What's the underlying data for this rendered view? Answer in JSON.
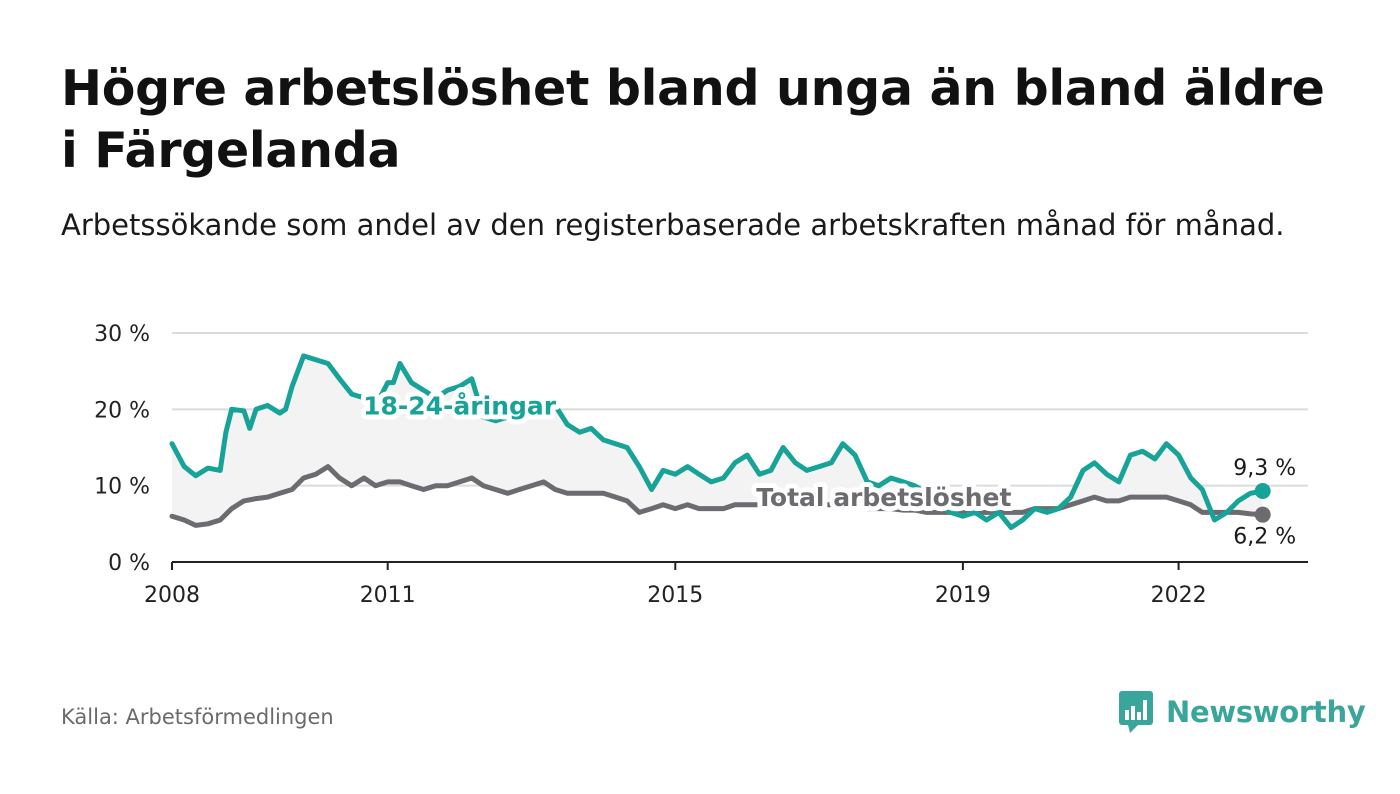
{
  "header": {
    "title": "Högre arbetslöshet bland unga än bland äldre i Färgelanda",
    "subtitle": "Arbetssökande som andel av den registerbaserade arbetskraften månad för månad."
  },
  "footer": {
    "source": "Källa: Arbetsförmedlingen",
    "brand": "Newsworthy",
    "brand_color": "#3aa59b"
  },
  "chart_data": {
    "type": "line",
    "title": "Högre arbetslöshet bland unga än bland äldre i Färgelanda",
    "xlabel": "",
    "ylabel": "",
    "xlim": [
      2008.0,
      2023.8
    ],
    "ylim": [
      0,
      30
    ],
    "grid": true,
    "yticks": [
      0,
      10,
      20,
      30
    ],
    "ytick_labels": [
      "0 %",
      "10 %",
      "20 %",
      "30 %"
    ],
    "xticks": [
      2008,
      2011,
      2015,
      2019,
      2022
    ],
    "xtick_labels": [
      "2008",
      "2011",
      "2015",
      "2019",
      "2022"
    ],
    "series": [
      {
        "name": "18-24-åringar",
        "color": "#17a398",
        "end_label": "9,3 %",
        "points": [
          [
            2008.0,
            15.5
          ],
          [
            2008.17,
            12.5
          ],
          [
            2008.33,
            11.3
          ],
          [
            2008.5,
            12.3
          ],
          [
            2008.67,
            12.0
          ],
          [
            2008.75,
            17.0
          ],
          [
            2008.83,
            20.0
          ],
          [
            2009.0,
            19.8
          ],
          [
            2009.08,
            17.5
          ],
          [
            2009.17,
            20.0
          ],
          [
            2009.33,
            20.5
          ],
          [
            2009.5,
            19.5
          ],
          [
            2009.58,
            20.0
          ],
          [
            2009.67,
            23.0
          ],
          [
            2009.83,
            27.0
          ],
          [
            2010.0,
            26.5
          ],
          [
            2010.17,
            26.0
          ],
          [
            2010.33,
            24.0
          ],
          [
            2010.5,
            22.0
          ],
          [
            2010.67,
            21.5
          ],
          [
            2010.75,
            20.5
          ],
          [
            2010.92,
            22.0
          ],
          [
            2011.0,
            23.5
          ],
          [
            2011.08,
            23.5
          ],
          [
            2011.17,
            26.0
          ],
          [
            2011.33,
            23.5
          ],
          [
            2011.5,
            22.5
          ],
          [
            2011.67,
            21.5
          ],
          [
            2011.83,
            22.5
          ],
          [
            2012.0,
            23.0
          ],
          [
            2012.17,
            24.0
          ],
          [
            2012.33,
            19.0
          ],
          [
            2012.5,
            18.5
          ],
          [
            2012.67,
            19.0
          ],
          [
            2013.0,
            20.0
          ],
          [
            2013.33,
            20.5
          ],
          [
            2013.5,
            18.0
          ],
          [
            2013.67,
            17.0
          ],
          [
            2013.83,
            17.5
          ],
          [
            2014.0,
            16.0
          ],
          [
            2014.33,
            15.0
          ],
          [
            2014.5,
            12.5
          ],
          [
            2014.67,
            9.5
          ],
          [
            2014.83,
            12.0
          ],
          [
            2015.0,
            11.5
          ],
          [
            2015.17,
            12.5
          ],
          [
            2015.33,
            11.5
          ],
          [
            2015.5,
            10.5
          ],
          [
            2015.67,
            11.0
          ],
          [
            2015.83,
            13.0
          ],
          [
            2016.0,
            14.0
          ],
          [
            2016.17,
            11.5
          ],
          [
            2016.33,
            12.0
          ],
          [
            2016.5,
            15.0
          ],
          [
            2016.67,
            13.0
          ],
          [
            2016.83,
            12.0
          ],
          [
            2017.0,
            12.5
          ],
          [
            2017.17,
            13.0
          ],
          [
            2017.33,
            15.5
          ],
          [
            2017.5,
            14.0
          ],
          [
            2017.67,
            10.5
          ],
          [
            2017.83,
            10.0
          ],
          [
            2018.0,
            11.0
          ],
          [
            2018.17,
            10.5
          ],
          [
            2018.33,
            10.0
          ],
          [
            2018.5,
            9.0
          ],
          [
            2018.67,
            7.5
          ],
          [
            2018.83,
            6.5
          ],
          [
            2019.0,
            6.0
          ],
          [
            2019.17,
            6.5
          ],
          [
            2019.33,
            5.5
          ],
          [
            2019.5,
            6.5
          ],
          [
            2019.67,
            4.5
          ],
          [
            2019.83,
            5.5
          ],
          [
            2020.0,
            7.0
          ],
          [
            2020.17,
            6.5
          ],
          [
            2020.33,
            7.0
          ],
          [
            2020.5,
            8.5
          ],
          [
            2020.67,
            12.0
          ],
          [
            2020.83,
            13.0
          ],
          [
            2021.0,
            11.5
          ],
          [
            2021.17,
            10.5
          ],
          [
            2021.33,
            14.0
          ],
          [
            2021.5,
            14.5
          ],
          [
            2021.67,
            13.5
          ],
          [
            2021.83,
            15.5
          ],
          [
            2022.0,
            14.0
          ],
          [
            2022.17,
            11.0
          ],
          [
            2022.33,
            9.5
          ],
          [
            2022.5,
            5.5
          ],
          [
            2022.67,
            6.5
          ],
          [
            2022.83,
            8.0
          ],
          [
            2023.0,
            9.0
          ],
          [
            2023.17,
            9.3
          ]
        ]
      },
      {
        "name": "Total arbetslöshet",
        "color": "#6b6b70",
        "end_label": "6,2 %",
        "points": [
          [
            2008.0,
            6.0
          ],
          [
            2008.17,
            5.5
          ],
          [
            2008.33,
            4.8
          ],
          [
            2008.5,
            5.0
          ],
          [
            2008.67,
            5.5
          ],
          [
            2008.83,
            7.0
          ],
          [
            2009.0,
            8.0
          ],
          [
            2009.17,
            8.3
          ],
          [
            2009.33,
            8.5
          ],
          [
            2009.5,
            9.0
          ],
          [
            2009.67,
            9.5
          ],
          [
            2009.83,
            11.0
          ],
          [
            2010.0,
            11.5
          ],
          [
            2010.17,
            12.5
          ],
          [
            2010.33,
            11.0
          ],
          [
            2010.5,
            10.0
          ],
          [
            2010.67,
            11.0
          ],
          [
            2010.83,
            10.0
          ],
          [
            2011.0,
            10.5
          ],
          [
            2011.17,
            10.5
          ],
          [
            2011.33,
            10.0
          ],
          [
            2011.5,
            9.5
          ],
          [
            2011.67,
            10.0
          ],
          [
            2011.83,
            10.0
          ],
          [
            2012.0,
            10.5
          ],
          [
            2012.17,
            11.0
          ],
          [
            2012.33,
            10.0
          ],
          [
            2012.5,
            9.5
          ],
          [
            2012.67,
            9.0
          ],
          [
            2012.83,
            9.5
          ],
          [
            2013.0,
            10.0
          ],
          [
            2013.17,
            10.5
          ],
          [
            2013.33,
            9.5
          ],
          [
            2013.5,
            9.0
          ],
          [
            2013.67,
            9.0
          ],
          [
            2013.83,
            9.0
          ],
          [
            2014.0,
            9.0
          ],
          [
            2014.17,
            8.5
          ],
          [
            2014.33,
            8.0
          ],
          [
            2014.5,
            6.5
          ],
          [
            2014.67,
            7.0
          ],
          [
            2014.83,
            7.5
          ],
          [
            2015.0,
            7.0
          ],
          [
            2015.17,
            7.5
          ],
          [
            2015.33,
            7.0
          ],
          [
            2015.5,
            7.0
          ],
          [
            2015.67,
            7.0
          ],
          [
            2015.83,
            7.5
          ],
          [
            2016.0,
            7.5
          ],
          [
            2016.17,
            7.5
          ],
          [
            2016.33,
            7.5
          ],
          [
            2016.5,
            8.0
          ],
          [
            2016.67,
            7.5
          ],
          [
            2016.83,
            7.5
          ],
          [
            2017.0,
            7.5
          ],
          [
            2017.17,
            7.5
          ],
          [
            2017.33,
            7.5
          ],
          [
            2017.5,
            7.5
          ],
          [
            2017.67,
            7.0
          ],
          [
            2017.83,
            7.0
          ],
          [
            2018.0,
            7.0
          ],
          [
            2018.17,
            6.8
          ],
          [
            2018.33,
            6.8
          ],
          [
            2018.5,
            6.5
          ],
          [
            2018.67,
            6.5
          ],
          [
            2018.83,
            6.5
          ],
          [
            2019.0,
            6.5
          ],
          [
            2019.17,
            6.5
          ],
          [
            2019.33,
            6.5
          ],
          [
            2019.5,
            6.5
          ],
          [
            2019.67,
            6.5
          ],
          [
            2019.83,
            6.5
          ],
          [
            2020.0,
            7.0
          ],
          [
            2020.17,
            7.0
          ],
          [
            2020.33,
            7.0
          ],
          [
            2020.5,
            7.5
          ],
          [
            2020.67,
            8.0
          ],
          [
            2020.83,
            8.5
          ],
          [
            2021.0,
            8.0
          ],
          [
            2021.17,
            8.0
          ],
          [
            2021.33,
            8.5
          ],
          [
            2021.5,
            8.5
          ],
          [
            2021.67,
            8.5
          ],
          [
            2021.83,
            8.5
          ],
          [
            2022.0,
            8.0
          ],
          [
            2022.17,
            7.5
          ],
          [
            2022.33,
            6.5
          ],
          [
            2022.5,
            6.5
          ],
          [
            2022.67,
            6.5
          ],
          [
            2022.83,
            6.5
          ],
          [
            2023.0,
            6.3
          ],
          [
            2023.17,
            6.2
          ]
        ]
      }
    ],
    "annotations": [
      {
        "text": "18-24-åringar",
        "x": 2012.0,
        "y": 20.5,
        "series": 0
      },
      {
        "text": "Total arbetslöshet",
        "x": 2017.9,
        "y": 8.5,
        "series": 1
      }
    ]
  }
}
